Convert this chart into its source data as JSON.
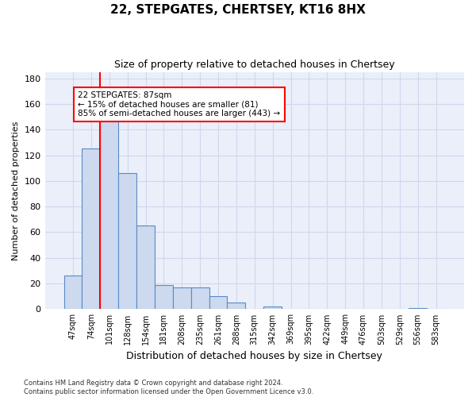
{
  "title": "22, STEPGATES, CHERTSEY, KT16 8HX",
  "subtitle": "Size of property relative to detached houses in Chertsey",
  "xlabel": "Distribution of detached houses by size in Chertsey",
  "ylabel": "Number of detached properties",
  "bar_labels": [
    "47sqm",
    "74sqm",
    "101sqm",
    "128sqm",
    "154sqm",
    "181sqm",
    "208sqm",
    "235sqm",
    "261sqm",
    "288sqm",
    "315sqm",
    "342sqm",
    "369sqm",
    "395sqm",
    "422sqm",
    "449sqm",
    "476sqm",
    "503sqm",
    "529sqm",
    "556sqm",
    "583sqm"
  ],
  "bar_values": [
    26,
    125,
    152,
    106,
    65,
    19,
    17,
    17,
    10,
    5,
    0,
    2,
    0,
    0,
    0,
    0,
    0,
    0,
    0,
    1,
    0
  ],
  "bar_color": "#ccd9ee",
  "bar_edgecolor": "#5b8ac5",
  "bar_linewidth": 0.8,
  "redline_x": 1.5,
  "annotation_text": "22 STEPGATES: 87sqm\n← 15% of detached houses are smaller (81)\n85% of semi-detached houses are larger (443) →",
  "annotation_box_color": "white",
  "annotation_box_edgecolor": "red",
  "ylim": [
    0,
    185
  ],
  "yticks": [
    0,
    20,
    40,
    60,
    80,
    100,
    120,
    140,
    160,
    180
  ],
  "background_color": "#eaeffa",
  "grid_color": "#d0d8ee",
  "footer_line1": "Contains HM Land Registry data © Crown copyright and database right 2024.",
  "footer_line2": "Contains public sector information licensed under the Open Government Licence v3.0."
}
